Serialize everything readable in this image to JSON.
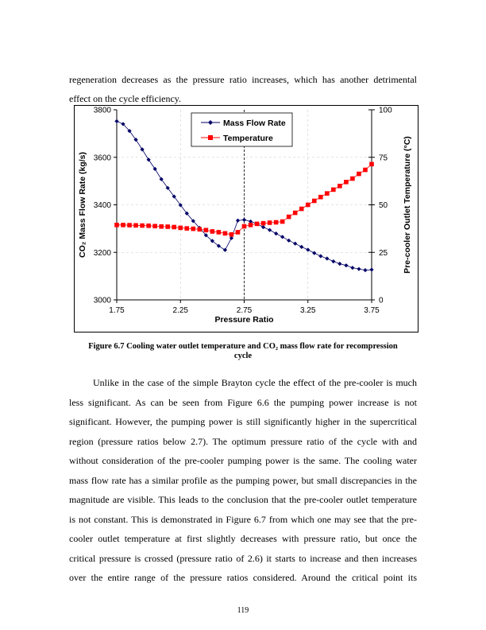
{
  "paragraph1": [
    "regeneration decreases as the pressure ratio increases, which has another detrimental",
    "effect on the cycle efficiency."
  ],
  "chart_data": {
    "type": "line",
    "xlabel": "Pressure Ratio",
    "ylabel": "CO₂ Mass Flow Rate (kg/s)",
    "y2label": "Pre-cooler Outlet Temperature (°C)",
    "xlim": [
      1.75,
      3.75
    ],
    "ylim": [
      3000,
      3800
    ],
    "y2lim": [
      0,
      100
    ],
    "xticks": [
      "1.75",
      "2.25",
      "2.75",
      "3.25",
      "3.75"
    ],
    "yticks": [
      "3000",
      "3200",
      "3400",
      "3600",
      "3800"
    ],
    "y2ticks": [
      "0",
      "25",
      "50",
      "75",
      "100"
    ],
    "grid": true,
    "legend_position": "top-center",
    "reference_line_x": 2.75,
    "x": [
      1.75,
      1.8,
      1.85,
      1.9,
      1.95,
      2.0,
      2.05,
      2.1,
      2.15,
      2.2,
      2.25,
      2.3,
      2.35,
      2.4,
      2.45,
      2.5,
      2.55,
      2.6,
      2.65,
      2.7,
      2.75,
      2.8,
      2.85,
      2.9,
      2.95,
      3.0,
      3.05,
      3.1,
      3.15,
      3.2,
      3.25,
      3.3,
      3.35,
      3.4,
      3.45,
      3.5,
      3.55,
      3.6,
      3.65,
      3.7,
      3.75
    ],
    "series": [
      {
        "name": "Mass Flow Rate",
        "axis": "left",
        "color": "#000066",
        "marker": "diamond",
        "values": [
          3752,
          3740,
          3711,
          3674,
          3633,
          3590,
          3551,
          3508,
          3471,
          3435,
          3399,
          3364,
          3332,
          3303,
          3272,
          3248,
          3227,
          3210,
          3260,
          3334,
          3337,
          3330,
          3320,
          3306,
          3294,
          3279,
          3265,
          3250,
          3237,
          3223,
          3211,
          3197,
          3184,
          3174,
          3162,
          3152,
          3145,
          3135,
          3130,
          3125,
          3127
        ]
      },
      {
        "name": "Temperature",
        "axis": "right",
        "color": "#ff0000",
        "marker": "square",
        "values": [
          39.4,
          39.4,
          39.3,
          39.2,
          39.1,
          39.0,
          38.8,
          38.6,
          38.5,
          38.3,
          37.9,
          37.6,
          37.4,
          37.1,
          36.7,
          36.0,
          35.6,
          35.0,
          34.4,
          35.6,
          38.7,
          39.4,
          40.0,
          40.3,
          40.6,
          40.8,
          41.2,
          43.7,
          45.8,
          47.9,
          50.0,
          52.1,
          54.1,
          56.0,
          58.0,
          59.9,
          62.0,
          63.8,
          66.3,
          68.4,
          71.4
        ]
      }
    ]
  },
  "caption": {
    "line1": "Figure 6.7 Cooling water outlet temperature and CO₂ mass flow rate for recompression",
    "line2": "cycle"
  },
  "paragraph2": [
    "Unlike in the case of the simple Brayton cycle the effect of the pre-cooler is much",
    "less significant.  As can be seen from Figure 6.6 the pumping power increase is not",
    "significant.  However, the pumping power is still significantly higher in the supercritical",
    "region (pressure ratios below 2.7).  The optimum pressure ratio of the cycle with and",
    "without consideration of the pre-cooler pumping power is the same.  The cooling water",
    "mass flow rate has a similar profile as the pumping power, but small discrepancies in the",
    "magnitude are visible.  This leads to the conclusion that the pre-cooler outlet temperature",
    "is not constant.  This is demonstrated in Figure 6.7 from which one may see that the pre-",
    "cooler outlet temperature at first slightly decreases with pressure ratio, but once the",
    "critical pressure is crossed (pressure ratio of 2.6) it starts to increase and then increases",
    "over the entire range of the pressure ratios considered.  Around the critical point its"
  ],
  "page_number": "119"
}
